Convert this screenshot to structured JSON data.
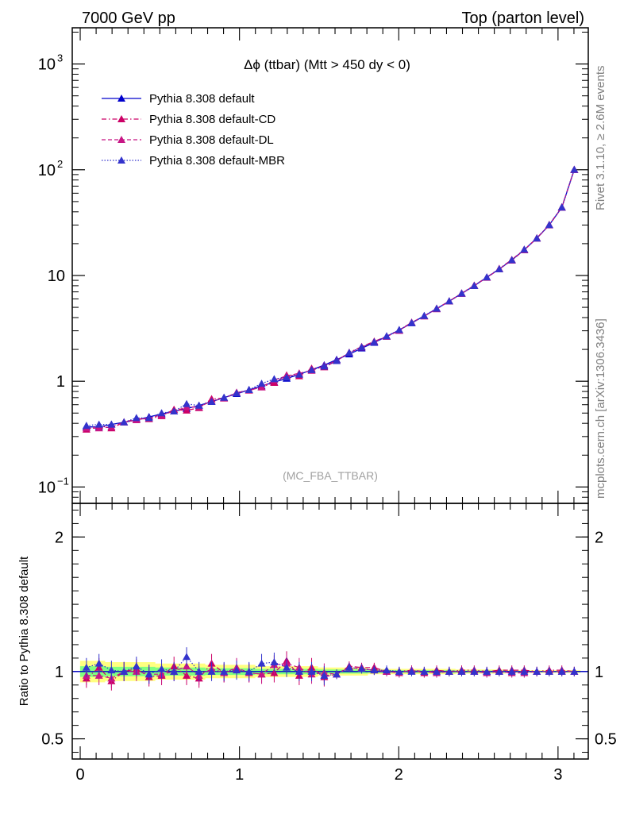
{
  "header": {
    "left": "7000 GeV pp",
    "right": "Top (parton level)"
  },
  "side_text": {
    "rivet": "Rivet 3.1.10, ≥ 2.6M events",
    "mcplots": "mcplots.cern.ch [arXiv:1306.3436]"
  },
  "chart_data": [
    {
      "type": "line",
      "title": "Δϕ (ttbar) (Mtt > 450 dy < 0)",
      "annotation": "(MC_FBA_TTBAR)",
      "yscale": "log",
      "xlim": [
        -0.05,
        3.19
      ],
      "ylim": [
        0.07,
        2200
      ],
      "x_ticks": [
        "0",
        "1",
        "2",
        "3"
      ],
      "y_ticks": [
        {
          "value": 0.1,
          "label": "10",
          "sup": "−1"
        },
        {
          "value": 1,
          "label": "1",
          "sup": ""
        },
        {
          "value": 10,
          "label": "10",
          "sup": ""
        },
        {
          "value": 100,
          "label": "10",
          "sup": "2"
        },
        {
          "value": 1000,
          "label": "10",
          "sup": "3"
        }
      ],
      "legend_position": "top-left",
      "x": [
        0.039,
        0.118,
        0.196,
        0.275,
        0.353,
        0.432,
        0.511,
        0.589,
        0.668,
        0.746,
        0.825,
        0.903,
        0.982,
        1.06,
        1.139,
        1.218,
        1.296,
        1.375,
        1.453,
        1.532,
        1.61,
        1.689,
        1.767,
        1.846,
        1.924,
        2.003,
        2.081,
        2.16,
        2.238,
        2.317,
        2.395,
        2.474,
        2.553,
        2.631,
        2.71,
        2.788,
        2.867,
        2.945,
        3.024,
        3.102
      ],
      "series": [
        {
          "name": "Pythia 8.308 default",
          "color": "#0000cc",
          "linestyle": "solid",
          "values": [
            0.37,
            0.37,
            0.39,
            0.41,
            0.43,
            0.46,
            0.49,
            0.52,
            0.55,
            0.59,
            0.64,
            0.7,
            0.76,
            0.83,
            0.9,
            0.98,
            1.06,
            1.16,
            1.28,
            1.42,
            1.6,
            1.8,
            2.05,
            2.32,
            2.65,
            3.05,
            3.55,
            4.15,
            4.85,
            5.7,
            6.75,
            8.0,
            9.6,
            11.5,
            14.0,
            17.5,
            22.5,
            30.0,
            44.0,
            100.0
          ]
        },
        {
          "name": "Pythia 8.308 default-CD",
          "color": "#cc0066",
          "linestyle": "dashdot",
          "values": [
            0.35,
            0.38,
            0.36,
            0.41,
            0.44,
            0.44,
            0.47,
            0.54,
            0.53,
            0.56,
            0.68,
            0.69,
            0.78,
            0.82,
            0.88,
            0.97,
            1.14,
            1.12,
            1.32,
            1.36,
            1.56,
            1.87,
            2.12,
            2.38,
            2.66,
            3.04,
            3.6,
            4.12,
            4.88,
            5.72,
            6.8,
            8.05,
            9.62,
            11.6,
            14.1,
            17.6,
            22.6,
            30.2,
            44.3,
            100.5
          ]
        },
        {
          "name": "Pythia 8.308 default-DL",
          "color": "#c71585",
          "linestyle": "dashed",
          "values": [
            0.36,
            0.36,
            0.37,
            0.41,
            0.43,
            0.45,
            0.48,
            0.52,
            0.57,
            0.57,
            0.65,
            0.69,
            0.78,
            0.82,
            0.88,
            1.03,
            1.12,
            1.19,
            1.26,
            1.4,
            1.57,
            1.86,
            2.09,
            2.35,
            2.64,
            3.01,
            3.59,
            4.13,
            4.82,
            5.71,
            6.73,
            8.03,
            9.55,
            11.5,
            13.9,
            17.4,
            22.4,
            29.9,
            43.9,
            99.6
          ]
        },
        {
          "name": "Pythia 8.308 default-MBR",
          "color": "#3333cc",
          "linestyle": "dotted",
          "values": [
            0.38,
            0.39,
            0.39,
            0.41,
            0.45,
            0.45,
            0.5,
            0.52,
            0.61,
            0.59,
            0.64,
            0.7,
            0.77,
            0.83,
            0.95,
            1.05,
            1.09,
            1.16,
            1.28,
            1.38,
            1.56,
            1.86,
            2.1,
            2.35,
            2.67,
            3.06,
            3.57,
            4.16,
            4.87,
            5.72,
            6.77,
            8.01,
            9.63,
            11.5,
            14.0,
            17.6,
            22.5,
            30.1,
            44.1,
            100.2
          ]
        }
      ]
    },
    {
      "type": "line",
      "ylabel": "Ratio to Pythia 8.308 default",
      "xlim": [
        -0.05,
        3.19
      ],
      "ylim": [
        0.35,
        2.25
      ],
      "x_ticks": [
        "0",
        "1",
        "2",
        "3"
      ],
      "y_ticks": [
        {
          "value": 0.5,
          "label": "0.5"
        },
        {
          "value": 1,
          "label": "1"
        },
        {
          "value": 2,
          "label": "2"
        }
      ],
      "band_color_outer": "#ffff80",
      "band_color_inner": "#80ff80",
      "x": [
        0.039,
        0.118,
        0.196,
        0.275,
        0.353,
        0.432,
        0.511,
        0.589,
        0.668,
        0.746,
        0.825,
        0.903,
        0.982,
        1.06,
        1.139,
        1.218,
        1.296,
        1.375,
        1.453,
        1.532,
        1.61,
        1.689,
        1.767,
        1.846,
        1.924,
        2.003,
        2.081,
        2.16,
        2.238,
        2.317,
        2.395,
        2.474,
        2.553,
        2.631,
        2.71,
        2.788,
        2.867,
        2.945,
        3.024,
        3.102
      ],
      "band_outer": [
        0.08,
        0.08,
        0.07,
        0.07,
        0.07,
        0.07,
        0.06,
        0.06,
        0.06,
        0.06,
        0.05,
        0.05,
        0.05,
        0.05,
        0.04,
        0.04,
        0.04,
        0.04,
        0.04,
        0.03,
        0.03,
        0.03,
        0.03,
        0.02,
        0.02,
        0.02,
        0.02,
        0.02,
        0.02,
        0.02,
        0.015,
        0.015,
        0.015,
        0.015,
        0.01,
        0.01,
        0.01,
        0.01,
        0.01,
        0.01
      ],
      "band_inner": [
        0.04,
        0.04,
        0.035,
        0.035,
        0.035,
        0.035,
        0.03,
        0.03,
        0.03,
        0.03,
        0.025,
        0.025,
        0.025,
        0.025,
        0.02,
        0.02,
        0.02,
        0.02,
        0.02,
        0.015,
        0.015,
        0.015,
        0.015,
        0.01,
        0.01,
        0.01,
        0.01,
        0.01,
        0.01,
        0.01,
        0.008,
        0.008,
        0.008,
        0.008,
        0.005,
        0.005,
        0.005,
        0.005,
        0.005,
        0.005
      ],
      "series": [
        {
          "name": "Pythia 8.308 default-CD",
          "color": "#cc0066",
          "linestyle": "dashdot",
          "values": [
            0.95,
            1.03,
            0.93,
            1.0,
            1.02,
            0.96,
            0.97,
            1.04,
            0.97,
            0.95,
            1.06,
            0.99,
            1.02,
            0.99,
            0.98,
            0.99,
            1.08,
            0.97,
            1.03,
            0.96,
            0.98,
            1.04,
            1.03,
            1.03,
            1.0,
            1.0,
            1.01,
            0.99,
            1.01,
            1.0,
            1.01,
            1.01,
            1.0,
            1.01,
            1.01,
            1.01,
            1.0,
            1.01,
            1.01,
            1.0
          ]
        },
        {
          "name": "Pythia 8.308 default-DL",
          "color": "#c71585",
          "linestyle": "dashed",
          "values": [
            0.97,
            0.97,
            0.95,
            1.0,
            1.0,
            0.98,
            0.98,
            1.0,
            1.04,
            0.97,
            1.02,
            0.99,
            1.03,
            0.99,
            0.98,
            1.05,
            1.06,
            1.03,
            0.98,
            0.99,
            0.98,
            1.03,
            1.02,
            1.01,
            1.0,
            0.99,
            1.01,
            1.0,
            0.99,
            1.0,
            1.0,
            1.0,
            0.99,
            1.0,
            0.99,
            0.99,
            1.0,
            1.0,
            1.0,
            1.0
          ]
        },
        {
          "name": "Pythia 8.308 default-MBR",
          "color": "#3333cc",
          "linestyle": "dotted",
          "values": [
            1.03,
            1.06,
            1.01,
            1.0,
            1.04,
            0.98,
            1.02,
            1.0,
            1.11,
            1.0,
            1.0,
            1.0,
            1.01,
            1.0,
            1.06,
            1.07,
            1.03,
            1.0,
            1.0,
            0.97,
            0.98,
            1.03,
            1.02,
            1.01,
            1.01,
            1.0,
            1.0,
            1.0,
            1.0,
            1.0,
            1.0,
            1.0,
            1.0,
            1.0,
            1.0,
            1.0,
            1.0,
            1.0,
            1.0,
            1.0
          ]
        }
      ]
    }
  ]
}
